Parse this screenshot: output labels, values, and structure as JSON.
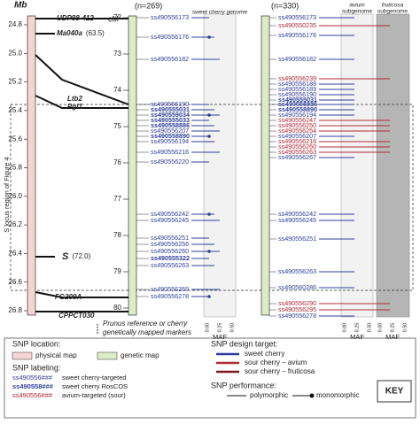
{
  "physical_map": {
    "axis_label": "Mb",
    "ticks": [
      "24.8",
      "25.0",
      "25.2",
      "25.4",
      "25.6",
      "25.8",
      "26.0",
      "26.2",
      "26.4",
      "26.6",
      "26.8"
    ],
    "markers": [
      {
        "name": "UDP98-412"
      },
      {
        "name": "Ma040a",
        "note": "(63.5)"
      },
      {
        "name": "Ltb2"
      },
      {
        "name": "Pgl1"
      },
      {
        "name": "S",
        "note": "(72.0)"
      },
      {
        "name": "FG209A"
      },
      {
        "name": "CPPCT030"
      }
    ],
    "region_label": "S locus region of Figure 4"
  },
  "map1": {
    "n": "(n=269)",
    "axis_label": "cM",
    "ticks": [
      "72",
      "73",
      "74",
      "75",
      "76",
      "77",
      "78",
      "79",
      "80"
    ],
    "header": "sweet cherry genome",
    "snps": [
      {
        "name": "ss490556173",
        "color": "#2f3f9a"
      },
      {
        "name": "ss490556176",
        "color": "#2f3f9a"
      },
      {
        "name": "ss490556182",
        "color": "#2f3f9a"
      },
      {
        "name": "ss490556190",
        "color": "#2f3f9a"
      },
      {
        "name": "ss490555031",
        "color": "#2f3f9a",
        "bold": true
      },
      {
        "name": "ss490559034",
        "color": "#2f3f9a",
        "bold": true
      },
      {
        "name": "ss490555033",
        "color": "#2f3f9a",
        "bold": true
      },
      {
        "name": "ss490558886",
        "color": "#2f3f9a",
        "bold": true
      },
      {
        "name": "ss490556207",
        "color": "#2f3f9a"
      },
      {
        "name": "ss490558890",
        "color": "#2f3f9a",
        "bold": true
      },
      {
        "name": "ss490556194",
        "color": "#2f3f9a"
      },
      {
        "name": "ss490556216",
        "color": "#2f3f9a"
      },
      {
        "name": "ss490556220",
        "color": "#2f3f9a"
      },
      {
        "name": "ss490556242",
        "color": "#2f3f9a"
      },
      {
        "name": "ss490556245",
        "color": "#2f3f9a"
      },
      {
        "name": "ss490556251",
        "color": "#2f3f9a"
      },
      {
        "name": "ss490556256",
        "color": "#2f3f9a"
      },
      {
        "name": "ss490556260",
        "color": "#2f3f9a"
      },
      {
        "name": "ss490555322",
        "color": "#2f3f9a",
        "bold": true
      },
      {
        "name": "ss490556263",
        "color": "#2f3f9a"
      },
      {
        "name": "ss490556269",
        "color": "#2f3f9a"
      },
      {
        "name": "ss490556278",
        "color": "#2f3f9a"
      }
    ]
  },
  "map2": {
    "n": "(n=330)",
    "headers": [
      {
        "species": "avium",
        "word": "subgenome"
      },
      {
        "species": "fruticosa",
        "word": "subgenome"
      }
    ],
    "snps": [
      {
        "name": "ss490556173",
        "color": "#2f3f9a"
      },
      {
        "name": "ss490550235",
        "color": "#b02a35"
      },
      {
        "name": "ss490556176",
        "color": "#2f3f9a"
      },
      {
        "name": "ss490556182",
        "color": "#2f3f9a"
      },
      {
        "name": "ss490556239",
        "color": "#b02a35"
      },
      {
        "name": "ss490556188",
        "color": "#2f3f9a"
      },
      {
        "name": "ss490556189",
        "color": "#2f3f9a"
      },
      {
        "name": "ss490556190",
        "color": "#2f3f9a"
      },
      {
        "name": "ss490555031",
        "color": "#2f3f9a",
        "bold": true
      },
      {
        "name": "ss490558886",
        "color": "#2f3f9a",
        "bold": true
      },
      {
        "name": "ss490558890",
        "color": "#2f3f9a",
        "bold": true
      },
      {
        "name": "ss490556194",
        "color": "#2f3f9a"
      },
      {
        "name": "ss490556247",
        "color": "#b02a35"
      },
      {
        "name": "ss490556250",
        "color": "#b02a35"
      },
      {
        "name": "ss490556254",
        "color": "#b02a35"
      },
      {
        "name": "ss490556207",
        "color": "#2f3f9a"
      },
      {
        "name": "ss490556216",
        "color": "#b02a35"
      },
      {
        "name": "ss490556260",
        "color": "#b02a35"
      },
      {
        "name": "ss490556263",
        "color": "#b02a35"
      },
      {
        "name": "ss490556267",
        "color": "#2f3f9a"
      },
      {
        "name": "ss490556242",
        "color": "#2f3f9a"
      },
      {
        "name": "ss490556245",
        "color": "#2f3f9a"
      },
      {
        "name": "ss490556251",
        "color": "#2f3f9a"
      },
      {
        "name": "ss490556263",
        "color": "#2f3f9a"
      },
      {
        "name": "ss490560286",
        "color": "#2f3f9a"
      },
      {
        "name": "ss490556290",
        "color": "#b02a35"
      },
      {
        "name": "ss490556295",
        "color": "#b02a35"
      },
      {
        "name": "ss490556278",
        "color": "#2f3f9a"
      }
    ]
  },
  "maf": {
    "label": "MAF",
    "ticks": [
      "0.00",
      "0.25",
      "0.50"
    ]
  },
  "marker_note": {
    "first": "Prunus reference or cherry",
    "second": "genetically mapped markers"
  },
  "key": {
    "title": "KEY",
    "location": {
      "heading": "SNP location:",
      "items": [
        "physical map",
        "genetic map"
      ]
    },
    "labeling": {
      "heading": "SNP labeling:",
      "items": [
        {
          "code": "ss490556###",
          "text": "sweet cherry-targeted",
          "color": "#2f3f9a"
        },
        {
          "code": "ss490558###",
          "text": "sweet cherry RosCOS",
          "color": "#2f3f9a"
        },
        {
          "code": "ss490556###",
          "text": "avium-targeted (sour)",
          "color": "#b02a35"
        }
      ]
    },
    "target": {
      "heading": "SNP design target:",
      "items": [
        {
          "text": "sweet cherry",
          "color": "#2f3f9a"
        },
        {
          "text": "sour cherry – avium",
          "color": "#b02a35"
        },
        {
          "text": "sour cherry – fruticosa",
          "color": "#7a1a20"
        }
      ]
    },
    "performance": {
      "heading": "SNP performance:",
      "items": [
        "polymorphic",
        "monomorphic"
      ]
    }
  }
}
